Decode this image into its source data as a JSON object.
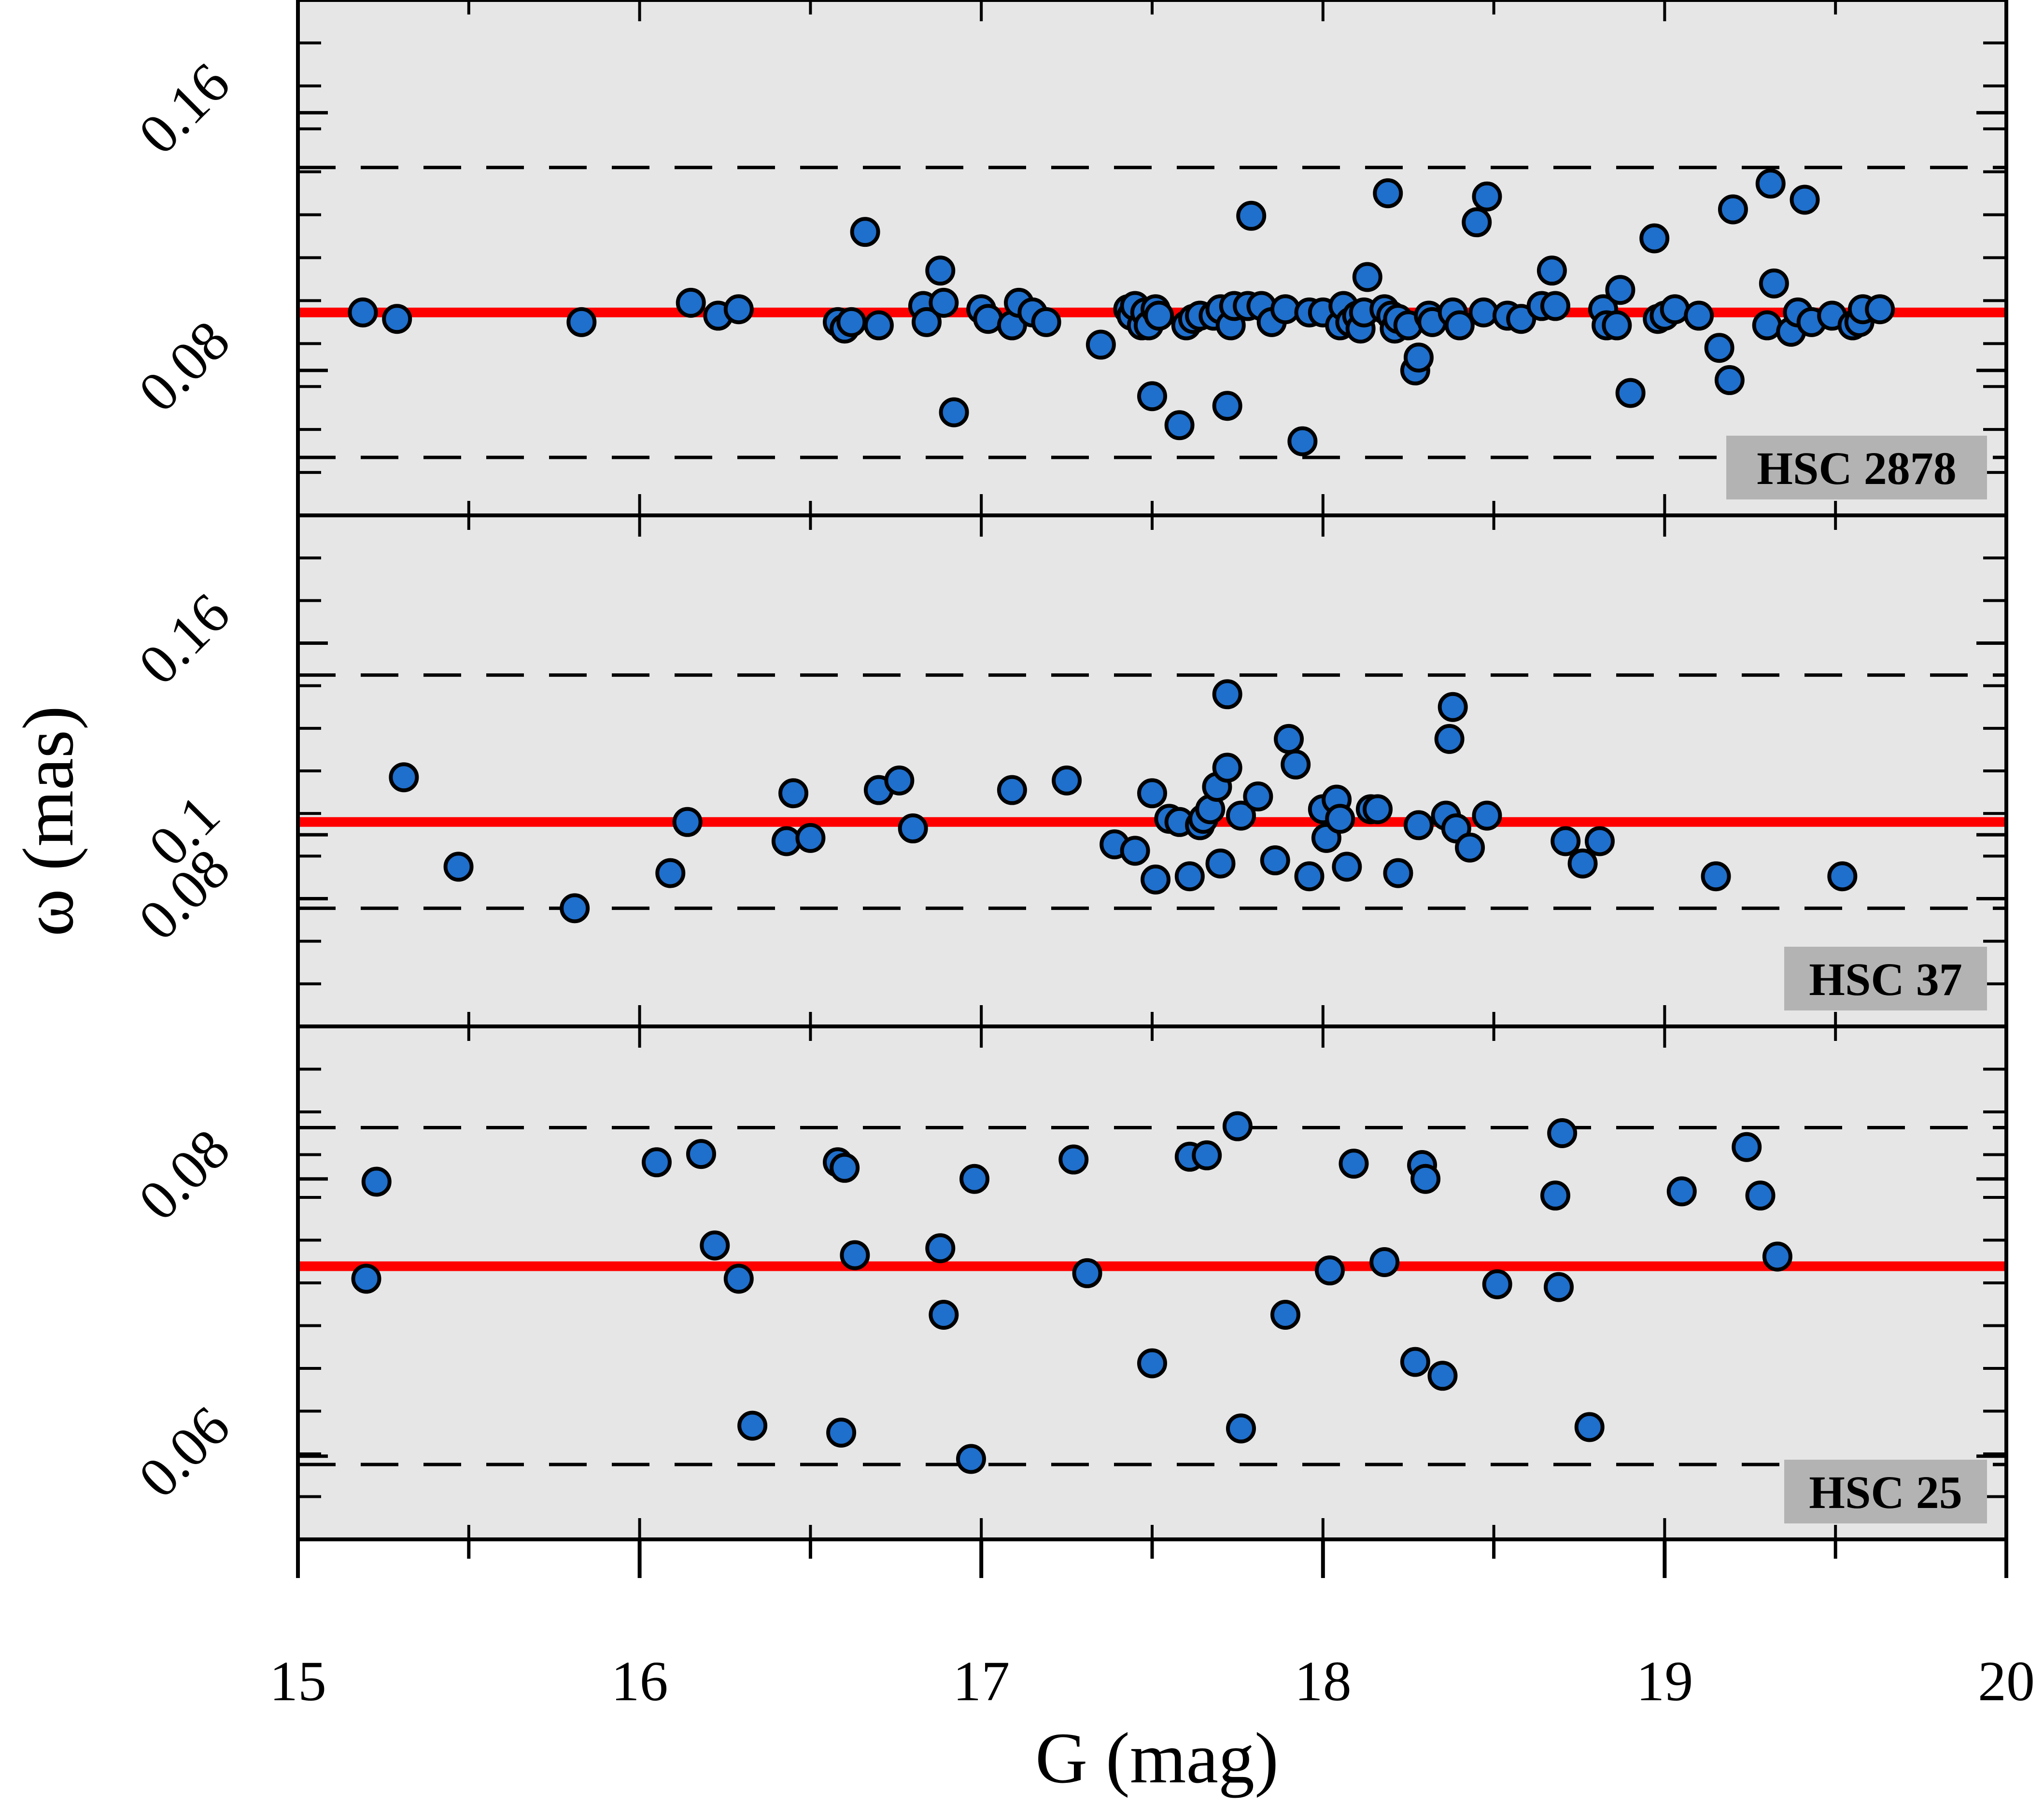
{
  "chart_data": {
    "type": "scatter",
    "xlabel": "G (mag)",
    "ylabel": "ω (mas)",
    "xlim": [
      15,
      20
    ],
    "xticks": [
      15,
      16,
      17,
      18,
      19,
      20
    ],
    "xtick_labels": [
      "15",
      "16",
      "17",
      "18",
      "19",
      "20"
    ],
    "colors": {
      "panel_background": "#e6e6e6",
      "marker_fill": "#1f6fcc",
      "marker_edge": "#000000",
      "mean_line": "#ff0000",
      "tag_background": "#b3b3b3"
    },
    "panels": [
      {
        "name": "HSC 2878",
        "label": "HSC 2878",
        "ylim": [
          0.035,
          0.195
        ],
        "yticks": [
          0.08,
          0.16
        ],
        "ytick_labels": [
          "0.08",
          "0.16"
        ],
        "mean": 0.098,
        "lower": 0.053,
        "upper": 0.143,
        "points": [
          [
            15.19,
            0.098
          ],
          [
            15.29,
            0.096
          ],
          [
            15.83,
            0.095
          ],
          [
            16.15,
            0.101
          ],
          [
            16.23,
            0.097
          ],
          [
            16.29,
            0.099
          ],
          [
            16.58,
            0.095
          ],
          [
            16.6,
            0.093
          ],
          [
            16.62,
            0.095
          ],
          [
            16.66,
            0.123
          ],
          [
            16.7,
            0.094
          ],
          [
            16.83,
            0.1
          ],
          [
            16.84,
            0.095
          ],
          [
            16.88,
            0.111
          ],
          [
            16.89,
            0.101
          ],
          [
            16.92,
            0.067
          ],
          [
            17.0,
            0.099
          ],
          [
            17.02,
            0.096
          ],
          [
            17.09,
            0.094
          ],
          [
            17.11,
            0.101
          ],
          [
            17.15,
            0.098
          ],
          [
            17.19,
            0.095
          ],
          [
            17.35,
            0.088
          ],
          [
            17.43,
            0.099
          ],
          [
            17.44,
            0.097
          ],
          [
            17.45,
            0.1
          ],
          [
            17.47,
            0.094
          ],
          [
            17.48,
            0.098
          ],
          [
            17.49,
            0.094
          ],
          [
            17.5,
            0.072
          ],
          [
            17.51,
            0.099
          ],
          [
            17.52,
            0.097
          ],
          [
            17.58,
            0.063
          ],
          [
            17.6,
            0.094
          ],
          [
            17.62,
            0.096
          ],
          [
            17.64,
            0.097
          ],
          [
            17.68,
            0.097
          ],
          [
            17.7,
            0.099
          ],
          [
            17.72,
            0.069
          ],
          [
            17.73,
            0.094
          ],
          [
            17.74,
            0.1
          ],
          [
            17.78,
            0.1
          ],
          [
            17.79,
            0.128
          ],
          [
            17.82,
            0.1
          ],
          [
            17.85,
            0.095
          ],
          [
            17.89,
            0.099
          ],
          [
            17.94,
            0.058
          ],
          [
            17.96,
            0.098
          ],
          [
            18.0,
            0.098
          ],
          [
            18.05,
            0.094
          ],
          [
            18.06,
            0.1
          ],
          [
            18.08,
            0.095
          ],
          [
            18.1,
            0.097
          ],
          [
            18.11,
            0.093
          ],
          [
            18.12,
            0.098
          ],
          [
            18.13,
            0.109
          ],
          [
            18.18,
            0.099
          ],
          [
            18.19,
            0.135
          ],
          [
            18.2,
            0.097
          ],
          [
            18.21,
            0.093
          ],
          [
            18.22,
            0.096
          ],
          [
            18.25,
            0.094
          ],
          [
            18.27,
            0.08
          ],
          [
            18.28,
            0.084
          ],
          [
            18.31,
            0.097
          ],
          [
            18.32,
            0.095
          ],
          [
            18.38,
            0.098
          ],
          [
            18.4,
            0.094
          ],
          [
            18.45,
            0.126
          ],
          [
            18.47,
            0.098
          ],
          [
            18.48,
            0.134
          ],
          [
            18.54,
            0.097
          ],
          [
            18.58,
            0.096
          ],
          [
            18.64,
            0.1
          ],
          [
            18.67,
            0.111
          ],
          [
            18.68,
            0.1
          ],
          [
            18.82,
            0.099
          ],
          [
            18.83,
            0.094
          ],
          [
            18.86,
            0.094
          ],
          [
            18.87,
            0.105
          ],
          [
            18.9,
            0.073
          ],
          [
            18.97,
            0.121
          ],
          [
            18.98,
            0.096
          ],
          [
            19.0,
            0.097
          ],
          [
            19.03,
            0.099
          ],
          [
            19.1,
            0.097
          ],
          [
            19.16,
            0.087
          ],
          [
            19.19,
            0.077
          ],
          [
            19.2,
            0.13
          ],
          [
            19.3,
            0.094
          ],
          [
            19.31,
            0.138
          ],
          [
            19.32,
            0.107
          ],
          [
            19.37,
            0.092
          ],
          [
            19.39,
            0.098
          ],
          [
            19.41,
            0.133
          ],
          [
            19.43,
            0.095
          ],
          [
            19.49,
            0.097
          ],
          [
            19.55,
            0.094
          ],
          [
            19.57,
            0.095
          ],
          [
            19.58,
            0.099
          ],
          [
            19.63,
            0.099
          ]
        ]
      },
      {
        "name": "HSC 37",
        "label": "HSC 37",
        "ylim": [
          0.04,
          0.2
        ],
        "yticks": [
          0.08,
          0.1,
          0.16
        ],
        "ytick_labels": [
          "0.08",
          "0.1",
          "0.16"
        ],
        "mean": 0.104,
        "lower": 0.077,
        "upper": 0.15,
        "points": [
          [
            15.31,
            0.118
          ],
          [
            15.47,
            0.09
          ],
          [
            15.81,
            0.077
          ],
          [
            16.09,
            0.088
          ],
          [
            16.14,
            0.104
          ],
          [
            16.43,
            0.098
          ],
          [
            16.45,
            0.113
          ],
          [
            16.5,
            0.099
          ],
          [
            16.7,
            0.114
          ],
          [
            16.76,
            0.117
          ],
          [
            16.8,
            0.102
          ],
          [
            17.09,
            0.114
          ],
          [
            17.25,
            0.117
          ],
          [
            17.39,
            0.097
          ],
          [
            17.45,
            0.095
          ],
          [
            17.5,
            0.113
          ],
          [
            17.51,
            0.086
          ],
          [
            17.55,
            0.105
          ],
          [
            17.58,
            0.104
          ],
          [
            17.61,
            0.087
          ],
          [
            17.64,
            0.103
          ],
          [
            17.65,
            0.105
          ],
          [
            17.67,
            0.108
          ],
          [
            17.69,
            0.115
          ],
          [
            17.7,
            0.091
          ],
          [
            17.72,
            0.121
          ],
          [
            17.72,
            0.144
          ],
          [
            17.76,
            0.106
          ],
          [
            17.81,
            0.112
          ],
          [
            17.86,
            0.092
          ],
          [
            17.9,
            0.13
          ],
          [
            17.92,
            0.122
          ],
          [
            17.96,
            0.087
          ],
          [
            18.0,
            0.108
          ],
          [
            18.01,
            0.099
          ],
          [
            18.04,
            0.111
          ],
          [
            18.05,
            0.105
          ],
          [
            18.07,
            0.09
          ],
          [
            18.14,
            0.108
          ],
          [
            18.16,
            0.108
          ],
          [
            18.22,
            0.088
          ],
          [
            18.28,
            0.103
          ],
          [
            18.36,
            0.106
          ],
          [
            18.37,
            0.13
          ],
          [
            18.38,
            0.14
          ],
          [
            18.39,
            0.102
          ],
          [
            18.43,
            0.096
          ],
          [
            18.48,
            0.106
          ],
          [
            18.71,
            0.098
          ],
          [
            18.76,
            0.091
          ],
          [
            18.81,
            0.098
          ],
          [
            19.15,
            0.087
          ],
          [
            19.52,
            0.087
          ]
        ]
      },
      {
        "name": "HSC 25",
        "label": "HSC 25",
        "ylim": [
          0.054,
          0.091
        ],
        "yticks": [
          0.06,
          0.08
        ],
        "ytick_labels": [
          "0.06",
          "0.08"
        ],
        "mean": 0.0737,
        "lower": 0.0594,
        "upper": 0.0837,
        "points": [
          [
            15.2,
            0.0728
          ],
          [
            15.23,
            0.0798
          ],
          [
            16.05,
            0.0812
          ],
          [
            16.18,
            0.0818
          ],
          [
            16.22,
            0.0752
          ],
          [
            16.29,
            0.0728
          ],
          [
            16.33,
            0.0622
          ],
          [
            16.58,
            0.0812
          ],
          [
            16.59,
            0.0617
          ],
          [
            16.6,
            0.0808
          ],
          [
            16.63,
            0.0745
          ],
          [
            16.88,
            0.075
          ],
          [
            16.89,
            0.0702
          ],
          [
            16.97,
            0.0598
          ],
          [
            16.98,
            0.08
          ],
          [
            17.27,
            0.0814
          ],
          [
            17.31,
            0.0732
          ],
          [
            17.5,
            0.0667
          ],
          [
            17.61,
            0.0816
          ],
          [
            17.66,
            0.0817
          ],
          [
            17.75,
            0.0838
          ],
          [
            17.76,
            0.062
          ],
          [
            17.89,
            0.0702
          ],
          [
            18.02,
            0.0734
          ],
          [
            18.09,
            0.0811
          ],
          [
            18.18,
            0.074
          ],
          [
            18.27,
            0.0668
          ],
          [
            18.29,
            0.081
          ],
          [
            18.3,
            0.08
          ],
          [
            18.35,
            0.0658
          ],
          [
            18.51,
            0.0724
          ],
          [
            18.68,
            0.0788
          ],
          [
            18.69,
            0.0722
          ],
          [
            18.7,
            0.0833
          ],
          [
            18.78,
            0.0621
          ],
          [
            19.05,
            0.0791
          ],
          [
            19.24,
            0.0823
          ],
          [
            19.28,
            0.0788
          ],
          [
            19.33,
            0.0744
          ]
        ]
      }
    ]
  }
}
